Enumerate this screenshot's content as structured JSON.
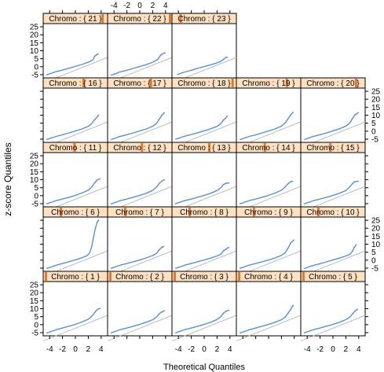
{
  "chart_data": {
    "type": "scatter",
    "subtype": "lattice qq-plot",
    "xlabel": "Theoretical Quantiles",
    "ylabel": "z-score Quantiles",
    "xlim": [
      -5,
      5
    ],
    "ylim": [
      -7,
      27
    ],
    "x_ticks": [
      -4,
      -2,
      0,
      2,
      4
    ],
    "y_ticks": [
      -5,
      0,
      5,
      10,
      15,
      20,
      25
    ],
    "strip_prefix": "Chromo : ",
    "strip_color": "#ffe0c2",
    "strip_marker_color": "#e07a2e",
    "point_color": "#5c8fd6",
    "reference_line_color": "#b5b5b5",
    "reference_line": {
      "intercept": -2.2,
      "slope": 1.6
    },
    "panels": [
      {
        "chromo": 21,
        "strip": "Chromo : { 21 }",
        "marker_level": 0.95,
        "curve": [
          [
            -4.5,
            -5.2
          ],
          [
            -3,
            -3.1
          ],
          [
            -2,
            -2.1
          ],
          [
            -1,
            -1
          ],
          [
            0,
            0.2
          ],
          [
            1,
            1.4
          ],
          [
            2,
            2.8
          ],
          [
            2.7,
            4.2
          ],
          [
            3,
            6.5
          ],
          [
            3.3,
            7.5
          ],
          [
            3.5,
            8
          ]
        ]
      },
      {
        "chromo": 22,
        "strip": "Chromo : { 22 }",
        "marker_level": 1.0,
        "curve": [
          [
            -4.5,
            -5.4
          ],
          [
            -3,
            -3.2
          ],
          [
            -2,
            -2.2
          ],
          [
            -1,
            -1.1
          ],
          [
            0,
            0.1
          ],
          [
            1,
            1.3
          ],
          [
            2,
            2.8
          ],
          [
            2.8,
            4.6
          ],
          [
            3.2,
            7
          ],
          [
            3.5,
            8
          ],
          [
            3.9,
            8.7
          ]
        ]
      },
      {
        "chromo": 23,
        "strip": "Chromo : { 23 }",
        "marker_level": 0.1,
        "curve": [
          [
            -4.2,
            -5
          ],
          [
            -3,
            -3.3
          ],
          [
            -2,
            -2.2
          ],
          [
            -1,
            -1
          ],
          [
            0,
            0.1
          ],
          [
            1,
            1.2
          ],
          [
            2,
            2.4
          ],
          [
            2.5,
            3.2
          ],
          [
            3,
            4.6
          ],
          [
            3.3,
            5.6
          ],
          [
            3.6,
            6
          ]
        ]
      },
      {
        "chromo": 16,
        "strip": "Chromo : { 16 }",
        "marker_level": 0.63,
        "curve": [
          [
            -4.5,
            -5.3
          ],
          [
            -3,
            -3.3
          ],
          [
            -2,
            -2.2
          ],
          [
            -1,
            -1.1
          ],
          [
            0,
            0.1
          ],
          [
            1,
            1.4
          ],
          [
            2,
            3
          ],
          [
            2.5,
            4.6
          ],
          [
            2.9,
            6.8
          ],
          [
            3.2,
            8
          ],
          [
            3.6,
            10
          ]
        ]
      },
      {
        "chromo": 17,
        "strip": "Chromo : { 17 }",
        "marker_level": 0.68,
        "curve": [
          [
            -4.5,
            -5.3
          ],
          [
            -3,
            -3.2
          ],
          [
            -2,
            -2.2
          ],
          [
            -1,
            -1.1
          ],
          [
            0,
            0.2
          ],
          [
            1,
            1.4
          ],
          [
            2,
            3.1
          ],
          [
            2.6,
            4.8
          ],
          [
            3,
            7.4
          ],
          [
            3.4,
            9.8
          ],
          [
            3.8,
            11.5
          ]
        ]
      },
      {
        "chromo": 18,
        "strip": "Chromo : { 18 }",
        "marker_level": 0.97,
        "curve": [
          [
            -4.5,
            -5.2
          ],
          [
            -3,
            -3.1
          ],
          [
            -2,
            -2.1
          ],
          [
            -1,
            -1
          ],
          [
            0,
            0.2
          ],
          [
            1,
            1.5
          ],
          [
            2,
            3
          ],
          [
            2.6,
            4.8
          ],
          [
            3,
            7
          ],
          [
            3.3,
            8
          ],
          [
            3.6,
            9.5
          ]
        ]
      },
      {
        "chromo": 19,
        "strip": "Chromo : { 19 }",
        "marker_level": 0.8,
        "curve": [
          [
            -4.5,
            -5.4
          ],
          [
            -3,
            -3.3
          ],
          [
            -2,
            -2.3
          ],
          [
            -1,
            -1.1
          ],
          [
            0,
            0.1
          ],
          [
            1,
            1.4
          ],
          [
            2,
            3.2
          ],
          [
            2.6,
            5.2
          ],
          [
            3,
            7.6
          ],
          [
            3.4,
            10
          ],
          [
            3.8,
            11.8
          ]
        ]
      },
      {
        "chromo": 20,
        "strip": "Chromo : { 20 }",
        "marker_level": 0.88,
        "curve": [
          [
            -4.5,
            -5.3
          ],
          [
            -3,
            -3.2
          ],
          [
            -2,
            -2.2
          ],
          [
            -1,
            -1.1
          ],
          [
            0,
            0.2
          ],
          [
            1,
            1.5
          ],
          [
            2,
            3.2
          ],
          [
            2.6,
            5
          ],
          [
            3,
            7.8
          ],
          [
            3.4,
            10.2
          ],
          [
            3.9,
            11.5
          ]
        ]
      },
      {
        "chromo": 11,
        "strip": "Chromo : { 11 }",
        "marker_level": 0.48,
        "curve": [
          [
            -4.5,
            -5.2
          ],
          [
            -3,
            -3.1
          ],
          [
            -2,
            -2.1
          ],
          [
            -1,
            -1
          ],
          [
            0,
            0.2
          ],
          [
            1,
            1.6
          ],
          [
            2,
            3.5
          ],
          [
            2.5,
            5.3
          ],
          [
            3,
            8
          ],
          [
            3.4,
            10
          ],
          [
            3.8,
            10.5
          ]
        ]
      },
      {
        "chromo": 12,
        "strip": "Chromo : { 12 }",
        "marker_level": 0.53,
        "curve": [
          [
            -4.5,
            -5.2
          ],
          [
            -3,
            -3.1
          ],
          [
            -2,
            -2.1
          ],
          [
            -1,
            -1
          ],
          [
            0,
            0.2
          ],
          [
            1,
            1.5
          ],
          [
            2,
            3.3
          ],
          [
            2.6,
            5.4
          ],
          [
            3,
            7.6
          ],
          [
            3.4,
            9
          ],
          [
            3.8,
            10
          ]
        ]
      },
      {
        "chromo": 13,
        "strip": "Chromo : { 13 }",
        "marker_level": 0.58,
        "curve": [
          [
            -4.5,
            -5.1
          ],
          [
            -3,
            -3.1
          ],
          [
            -2,
            -2.1
          ],
          [
            -1,
            -1
          ],
          [
            0,
            0.2
          ],
          [
            1,
            1.5
          ],
          [
            2,
            3.2
          ],
          [
            2.6,
            5
          ],
          [
            3,
            7
          ],
          [
            3.4,
            7.8
          ],
          [
            3.8,
            8
          ]
        ]
      },
      {
        "chromo": 14,
        "strip": "Chromo : { 14 }",
        "marker_level": 0.43,
        "curve": [
          [
            -4.5,
            -5.2
          ],
          [
            -3,
            -3.1
          ],
          [
            -2,
            -2.1
          ],
          [
            -1,
            -1
          ],
          [
            0,
            0.2
          ],
          [
            1,
            1.6
          ],
          [
            2,
            3.4
          ],
          [
            2.6,
            5.5
          ],
          [
            3,
            7.4
          ],
          [
            3.4,
            8.6
          ],
          [
            3.7,
            9
          ]
        ]
      },
      {
        "chromo": 15,
        "strip": "Chromo : { 15 }",
        "marker_level": 0.45,
        "curve": [
          [
            -4.5,
            -5.2
          ],
          [
            -3,
            -3.1
          ],
          [
            -2,
            -2.1
          ],
          [
            -1,
            -1
          ],
          [
            0,
            0.2
          ],
          [
            1,
            1.5
          ],
          [
            2,
            3.2
          ],
          [
            2.5,
            5
          ],
          [
            3,
            7.4
          ],
          [
            3.4,
            8.8
          ],
          [
            3.9,
            9
          ]
        ]
      },
      {
        "chromo": 6,
        "strip": "Chromo : { 6 }",
        "marker_level": 0.25,
        "curve": [
          [
            -4.5,
            -5.3
          ],
          [
            -3,
            -3.2
          ],
          [
            -2,
            -2.1
          ],
          [
            -1,
            -1
          ],
          [
            0,
            0.2
          ],
          [
            1,
            1.5
          ],
          [
            1.8,
            2.8
          ],
          [
            2.2,
            4.5
          ],
          [
            2.5,
            8
          ],
          [
            2.8,
            14
          ],
          [
            3.1,
            20
          ],
          [
            3.4,
            24
          ],
          [
            3.6,
            25
          ]
        ]
      },
      {
        "chromo": 7,
        "strip": "Chromo : { 7 }",
        "marker_level": 0.25,
        "curve": [
          [
            -4.5,
            -5.2
          ],
          [
            -3,
            -3.1
          ],
          [
            -2,
            -2.1
          ],
          [
            -1,
            -1
          ],
          [
            0,
            0.1
          ],
          [
            1,
            1.4
          ],
          [
            2,
            2.9
          ],
          [
            2.6,
            4.2
          ],
          [
            3,
            6.4
          ],
          [
            3.4,
            8
          ],
          [
            3.7,
            8.6
          ]
        ]
      },
      {
        "chromo": 8,
        "strip": "Chromo : { 8 }",
        "marker_level": 0.25,
        "curve": [
          [
            -4.5,
            -5.2
          ],
          [
            -3,
            -3.1
          ],
          [
            -2,
            -2.1
          ],
          [
            -1,
            -1
          ],
          [
            0,
            0.1
          ],
          [
            1,
            1.3
          ],
          [
            2,
            2.6
          ],
          [
            2.6,
            3.8
          ],
          [
            3,
            5.8
          ],
          [
            3.4,
            7
          ],
          [
            3.8,
            8
          ]
        ]
      },
      {
        "chromo": 9,
        "strip": "Chromo : { 9 }",
        "marker_level": 0.25,
        "curve": [
          [
            -4.5,
            -5.2
          ],
          [
            -3,
            -3.1
          ],
          [
            -2,
            -2.1
          ],
          [
            -1,
            -1
          ],
          [
            0,
            0.1
          ],
          [
            1,
            1.4
          ],
          [
            2,
            3
          ],
          [
            2.6,
            4.8
          ],
          [
            3,
            7.4
          ],
          [
            3.5,
            11
          ],
          [
            3.9,
            12.5
          ]
        ]
      },
      {
        "chromo": 10,
        "strip": "Chromo : { 10 }",
        "marker_level": 0.25,
        "curve": [
          [
            -4.5,
            -5.3
          ],
          [
            -3,
            -3.2
          ],
          [
            -2,
            -2.2
          ],
          [
            -1,
            -1.1
          ],
          [
            0,
            0.1
          ],
          [
            1,
            1.3
          ],
          [
            2,
            2.6
          ],
          [
            2.6,
            3.6
          ],
          [
            3,
            5.4
          ],
          [
            3.3,
            8
          ],
          [
            3.6,
            9.5
          ]
        ]
      },
      {
        "chromo": 1,
        "strip": "Chromo : { 1 }",
        "marker_level": 0.0,
        "curve": [
          [
            -4.5,
            -5.3
          ],
          [
            -3,
            -3.2
          ],
          [
            -2,
            -2.1
          ],
          [
            -1,
            -1
          ],
          [
            0,
            0.2
          ],
          [
            1,
            1.6
          ],
          [
            2,
            3.4
          ],
          [
            2.6,
            5.4
          ],
          [
            3,
            7.6
          ],
          [
            3.4,
            9.5
          ],
          [
            3.8,
            10.2
          ]
        ]
      },
      {
        "chromo": 2,
        "strip": "Chromo : { 2 }",
        "marker_level": 0.0,
        "curve": [
          [
            -4.5,
            -5.2
          ],
          [
            -3,
            -3.1
          ],
          [
            -2,
            -2.1
          ],
          [
            -1,
            -1
          ],
          [
            0,
            0.2
          ],
          [
            1,
            1.5
          ],
          [
            2,
            3.1
          ],
          [
            2.6,
            4.8
          ],
          [
            3,
            6.6
          ],
          [
            3.4,
            8
          ],
          [
            3.8,
            8.6
          ]
        ]
      },
      {
        "chromo": 3,
        "strip": "Chromo : { 3 }",
        "marker_level": 0.0,
        "curve": [
          [
            -4.5,
            -5.2
          ],
          [
            -3,
            -3.1
          ],
          [
            -2,
            -2.1
          ],
          [
            -1,
            -1
          ],
          [
            0,
            0.2
          ],
          [
            1,
            1.5
          ],
          [
            2,
            3.2
          ],
          [
            2.6,
            5
          ],
          [
            3,
            7.2
          ],
          [
            3.4,
            8.4
          ],
          [
            3.8,
            9
          ]
        ]
      },
      {
        "chromo": 4,
        "strip": "Chromo : { 4 }",
        "marker_level": 0.0,
        "curve": [
          [
            -4.5,
            -5.3
          ],
          [
            -3,
            -3.2
          ],
          [
            -2,
            -2.1
          ],
          [
            -1,
            -1
          ],
          [
            0,
            0.2
          ],
          [
            1,
            1.5
          ],
          [
            2,
            3.1
          ],
          [
            2.6,
            4.8
          ],
          [
            3,
            7
          ],
          [
            3.4,
            9.4
          ],
          [
            3.8,
            12
          ]
        ]
      },
      {
        "chromo": 5,
        "strip": "Chromo : { 5 }",
        "marker_level": 0.0,
        "curve": [
          [
            -4.5,
            -5.2
          ],
          [
            -3,
            -3.1
          ],
          [
            -2,
            -2.1
          ],
          [
            -1,
            -1
          ],
          [
            0,
            0.2
          ],
          [
            1,
            1.5
          ],
          [
            2,
            3.1
          ],
          [
            2.6,
            4.7
          ],
          [
            3,
            6.6
          ],
          [
            3.4,
            8.4
          ],
          [
            3.8,
            9.6
          ]
        ]
      }
    ]
  }
}
